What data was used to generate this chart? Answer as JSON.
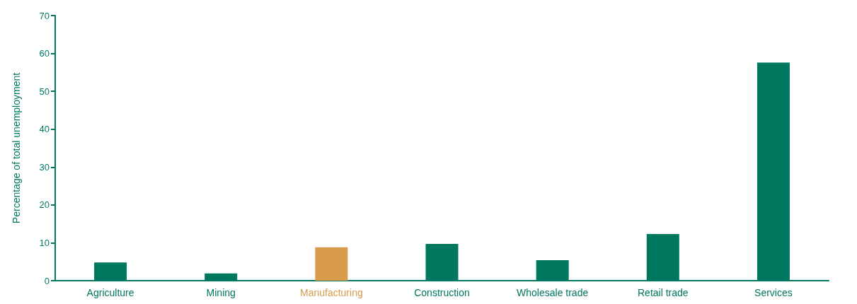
{
  "chart_data": {
    "type": "bar",
    "ylabel": "Percentage of total unemployment",
    "categories": [
      "Agriculture",
      "Mining",
      "Manufacturing",
      "Construction",
      "Wholesale trade",
      "Retail trade",
      "Services"
    ],
    "values": [
      4.8,
      1.9,
      8.8,
      9.7,
      5.4,
      12.3,
      57.6
    ],
    "colors": [
      "#00775f",
      "#00775f",
      "#d89b4b",
      "#00775f",
      "#00775f",
      "#00775f",
      "#00775f"
    ],
    "ylim": [
      0,
      70
    ],
    "yticks": [
      0,
      10,
      20,
      30,
      40,
      50,
      60,
      70
    ],
    "grid": false
  }
}
